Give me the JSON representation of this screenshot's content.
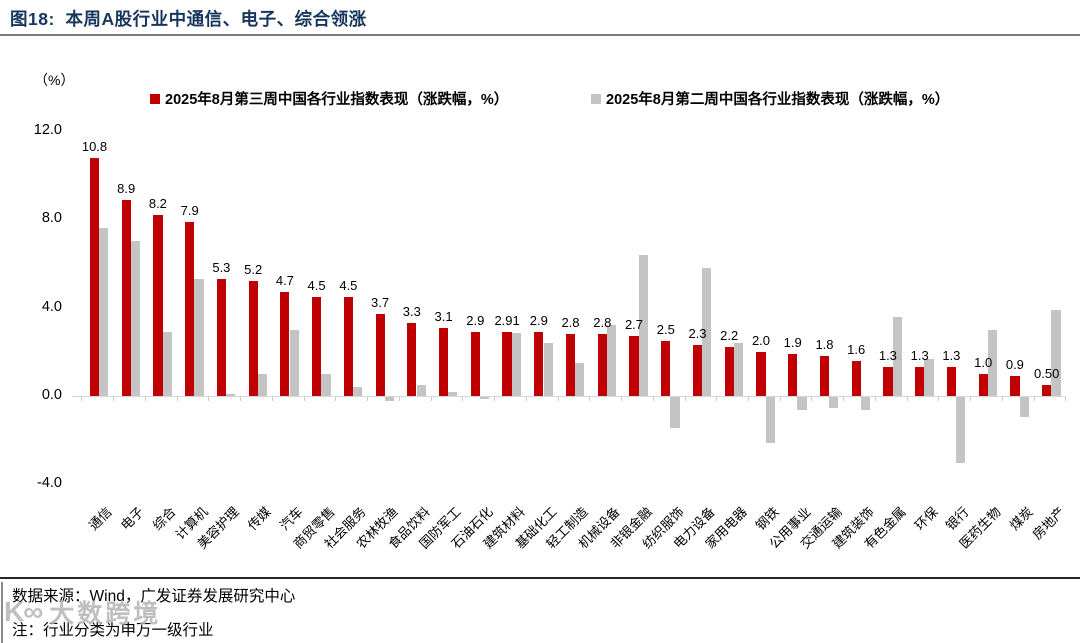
{
  "header": {
    "title": "图18:  本周A股行业中通信、电子、综合领涨"
  },
  "chart_data": {
    "type": "bar",
    "title": "本周A股行业中通信、电子、综合领涨",
    "categories": [
      "通信",
      "电子",
      "综合",
      "计算机",
      "美容护理",
      "传媒",
      "汽车",
      "商贸零售",
      "社会服务",
      "农林牧渔",
      "食品饮料",
      "国防军工",
      "石油石化",
      "建筑材料",
      "基础化工",
      "轻工制造",
      "机械设备",
      "非银金融",
      "纺织服饰",
      "电力设备",
      "家用电器",
      "钢铁",
      "公用事业",
      "交通运输",
      "建筑装饰",
      "有色金属",
      "环保",
      "银行",
      "医药生物",
      "煤炭",
      "房地产"
    ],
    "series": [
      {
        "name": "2025年8月第三周中国各行业指数表现（涨跌幅，%）",
        "color": "#c00000",
        "values": [
          10.8,
          8.9,
          8.2,
          7.9,
          5.3,
          5.2,
          4.7,
          4.5,
          4.5,
          3.7,
          3.3,
          3.1,
          2.9,
          2.91,
          2.9,
          2.8,
          2.8,
          2.7,
          2.5,
          2.3,
          2.2,
          2.0,
          1.9,
          1.8,
          1.6,
          1.3,
          1.3,
          1.3,
          1.0,
          0.9,
          0.5
        ],
        "data_labels": [
          "10.8",
          "8.9",
          "8.2",
          "7.9",
          "5.3",
          "5.2",
          "4.7",
          "4.5",
          "4.5",
          "3.7",
          "3.3",
          "3.1",
          "2.9",
          "2.91",
          "2.9",
          "2.8",
          "2.8",
          "2.7",
          "2.5",
          "2.3",
          "2.2",
          "2.0",
          "1.9",
          "1.8",
          "1.6",
          "1.3",
          "1.3",
          "1.3",
          "1.0",
          "0.9",
          "0.50"
        ]
      },
      {
        "name": "2025年8月第二周中国各行业指数表现（涨跌幅，%）",
        "color": "#c4c4c4",
        "values": [
          7.6,
          7.0,
          2.9,
          5.3,
          0.1,
          1.0,
          3.0,
          1.0,
          0.4,
          -0.2,
          0.5,
          0.2,
          -0.1,
          2.85,
          2.4,
          1.5,
          3.2,
          6.4,
          -1.4,
          5.8,
          2.4,
          -2.1,
          -0.6,
          -0.5,
          -0.6,
          3.6,
          1.7,
          -3.0,
          3.0,
          -0.9,
          3.9
        ]
      }
    ],
    "y_axis": {
      "unit": "（%）",
      "tick_labels": [
        "12.0",
        "8.0",
        "4.0",
        "0.0",
        "-4.0"
      ],
      "tick_values": [
        12,
        8,
        4,
        0,
        -4
      ],
      "range": [
        -4,
        12
      ]
    },
    "grid": false,
    "legend_position": "top",
    "data_labels_on": "series 1 only"
  },
  "footer": {
    "source": "数据来源：Wind，广发证券发展研究中心",
    "note": "注：行业分类为申万一级行业"
  },
  "watermark": {
    "logo": "K∞",
    "text": "大数跨境"
  }
}
